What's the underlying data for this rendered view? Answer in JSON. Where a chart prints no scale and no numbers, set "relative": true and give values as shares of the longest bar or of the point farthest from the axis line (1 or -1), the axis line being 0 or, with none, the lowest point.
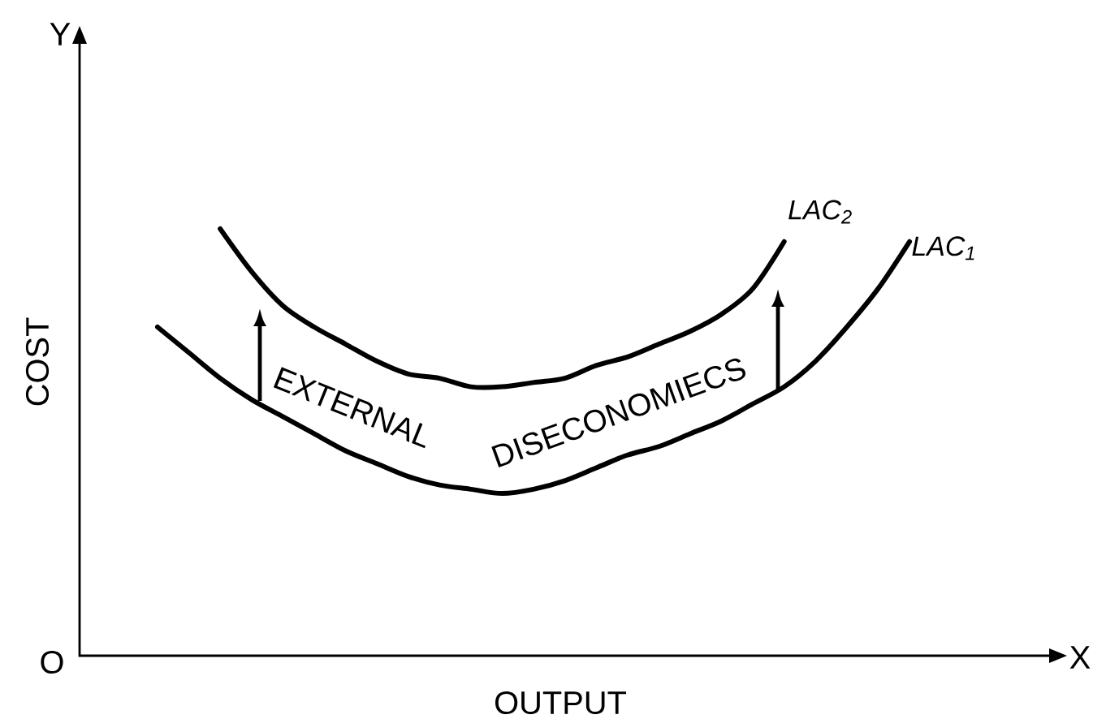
{
  "chart_data": {
    "type": "line",
    "xlabel": "OUTPUT",
    "ylabel": "COST",
    "relative": true,
    "annotations": [
      "Y",
      "X",
      "O",
      "EXTERNAL",
      "DISECONOMIECS"
    ],
    "categories": [
      null,
      null,
      null,
      null,
      null,
      null,
      null,
      null,
      null,
      null,
      null,
      null,
      null,
      null,
      null,
      null,
      null,
      null,
      null,
      null,
      null,
      null,
      null,
      null,
      null
    ],
    "series": [
      {
        "name": "LAC$_{1}$",
        "color": "#000000",
        "values": [
          0.77,
          0.71,
          0.65,
          0.6,
          0.56,
          0.52,
          0.48,
          0.45,
          0.42,
          0.4,
          0.39,
          0.38,
          0.39,
          0.41,
          0.44,
          0.47,
          0.49,
          0.52,
          0.55,
          0.59,
          0.63,
          0.69,
          0.77,
          0.86,
          0.97
        ]
      },
      {
        "name": "LAC$_{2}$",
        "color": "#000000",
        "values": [
          null,
          null,
          1.0,
          0.9,
          0.82,
          0.77,
          0.73,
          0.69,
          0.66,
          0.65,
          0.63,
          0.63,
          0.64,
          0.65,
          0.68,
          0.7,
          0.73,
          0.76,
          0.8,
          0.86,
          0.97,
          null,
          null,
          null,
          null
        ]
      }
    ]
  }
}
